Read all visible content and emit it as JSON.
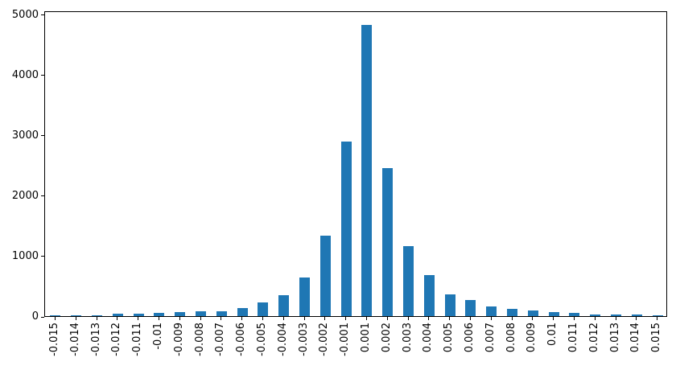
{
  "chart_data": {
    "type": "bar",
    "title": "",
    "xlabel": "",
    "ylabel": "",
    "categories": [
      "-0.015",
      "-0.014",
      "-0.013",
      "-0.012",
      "-0.011",
      "-0.01",
      "-0.009",
      "-0.008",
      "-0.007",
      "-0.006",
      "-0.005",
      "-0.004",
      "-0.003",
      "-0.002",
      "-0.001",
      "0.001",
      "0.002",
      "0.003",
      "0.004",
      "0.005",
      "0.006",
      "0.007",
      "0.008",
      "0.009",
      "0.01",
      "0.011",
      "0.012",
      "0.013",
      "0.014",
      "0.015"
    ],
    "values": [
      20,
      20,
      18,
      40,
      40,
      55,
      62,
      75,
      85,
      140,
      225,
      340,
      640,
      1335,
      2890,
      4820,
      2455,
      1165,
      680,
      365,
      260,
      155,
      115,
      90,
      62,
      58,
      28,
      30,
      26,
      12
    ],
    "yticks": [
      0,
      1000,
      2000,
      3000,
      4000,
      5000
    ],
    "ylim": [
      0,
      5000
    ],
    "ylim_display": [
      0,
      5060
    ],
    "x_tick_rotation": 90,
    "bar_color": "#1f77b4",
    "grid": false,
    "legend": "none"
  }
}
